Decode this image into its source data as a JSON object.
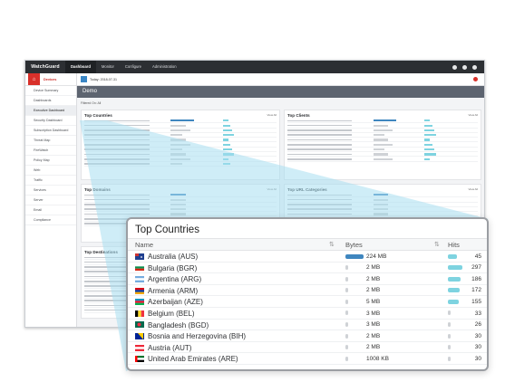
{
  "app": {
    "logo": "WatchGuard",
    "top_nav": [
      "Dashboard",
      "Monitor",
      "Configure",
      "Administration"
    ],
    "sidebar_title": "Devices",
    "sidebar_items": [
      "Device Summary",
      "Dashboards",
      "Executive Dashboard",
      "Security Dashboard",
      "Subscription Dashboard",
      "Threat Map",
      "FireWatch",
      "Policy Map",
      "Web",
      "Traffic",
      "Services",
      "Server",
      "Email",
      "Compliance"
    ],
    "date_label": "Today: 2018-07-31",
    "banner": "Demo",
    "filter_text": "Filtered On: All",
    "panels": {
      "countries": "Top Countries",
      "clients": "Top Clients",
      "domains": "Top Domains",
      "url_categories": "Top URL Categories",
      "destinations": "Top Destinations"
    },
    "view_all": "View All"
  },
  "zoom": {
    "title": "Top Countries",
    "col_name": "Name",
    "col_bytes": "Bytes",
    "col_hits": "Hits",
    "rows": [
      {
        "name": "Australia (AUS)",
        "bytes": "224 MB",
        "bytes_fill": 1.0,
        "bytes_color": "#3f86bf",
        "hits": "45",
        "hits_fill": 0.65,
        "hits_color": "#7ed3e0",
        "flag": "aus"
      },
      {
        "name": "Bulgaria (BGR)",
        "bytes": "2 MB",
        "bytes_fill": 0.04,
        "bytes_color": "#cfd2d6",
        "hits": "297",
        "hits_fill": 1.0,
        "hits_color": "#7ed3e0",
        "flag": "bgr"
      },
      {
        "name": "Argentina (ARG)",
        "bytes": "2 MB",
        "bytes_fill": 0.04,
        "bytes_color": "#cfd2d6",
        "hits": "186",
        "hits_fill": 0.85,
        "hits_color": "#7ed3e0",
        "flag": "arg"
      },
      {
        "name": "Armenia (ARM)",
        "bytes": "2 MB",
        "bytes_fill": 0.04,
        "bytes_color": "#cfd2d6",
        "hits": "172",
        "hits_fill": 0.8,
        "hits_color": "#7ed3e0",
        "flag": "arm"
      },
      {
        "name": "Azerbaijan (AZE)",
        "bytes": "5 MB",
        "bytes_fill": 0.08,
        "bytes_color": "#cfd2d6",
        "hits": "155",
        "hits_fill": 0.75,
        "hits_color": "#7ed3e0",
        "flag": "aze"
      },
      {
        "name": "Belgium (BEL)",
        "bytes": "3 MB",
        "bytes_fill": 0.05,
        "bytes_color": "#cfd2d6",
        "hits": "33",
        "hits_fill": 0.2,
        "hits_color": "#cfd2d6",
        "flag": "bel"
      },
      {
        "name": "Bangladesh (BGD)",
        "bytes": "3 MB",
        "bytes_fill": 0.05,
        "bytes_color": "#cfd2d6",
        "hits": "26",
        "hits_fill": 0.18,
        "hits_color": "#cfd2d6",
        "flag": "bgd"
      },
      {
        "name": "Bosnia and Herzegovina (BIH)",
        "bytes": "2 MB",
        "bytes_fill": 0.04,
        "bytes_color": "#cfd2d6",
        "hits": "30",
        "hits_fill": 0.19,
        "hits_color": "#cfd2d6",
        "flag": "bih"
      },
      {
        "name": "Austria (AUT)",
        "bytes": "2 MB",
        "bytes_fill": 0.04,
        "bytes_color": "#cfd2d6",
        "hits": "30",
        "hits_fill": 0.19,
        "hits_color": "#cfd2d6",
        "flag": "aut"
      },
      {
        "name": "United Arab Emirates (ARE)",
        "bytes": "1008 KB",
        "bytes_fill": 0.03,
        "bytes_color": "#cfd2d6",
        "hits": "30",
        "hits_fill": 0.19,
        "hits_color": "#cfd2d6",
        "flag": "are"
      }
    ]
  },
  "colors": {
    "accent_red": "#d8302a",
    "bytes_blue": "#3f86bf",
    "hits_cyan": "#7ed3e0",
    "beam": "#a8dff0"
  }
}
